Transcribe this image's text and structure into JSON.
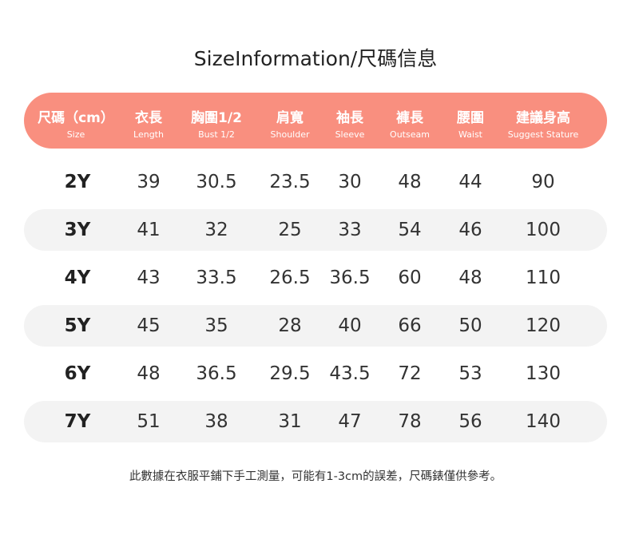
{
  "title": "SizeInformation/尺碼信息",
  "header": [
    {
      "zh": "尺碼（cm）",
      "en": "Size"
    },
    {
      "zh": "衣長",
      "en": "Length"
    },
    {
      "zh": "胸圍1/2",
      "en": "Bust 1/2"
    },
    {
      "zh": "肩寬",
      "en": "Shoulder"
    },
    {
      "zh": "袖長",
      "en": "Sleeve"
    },
    {
      "zh": "褲長",
      "en": "Outseam"
    },
    {
      "zh": "腰圍",
      "en": "Waist"
    },
    {
      "zh": "建議身高",
      "en": "Suggest Stature"
    }
  ],
  "rows": [
    [
      "2Y",
      "39",
      "30.5",
      "23.5",
      "30",
      "48",
      "44",
      "90"
    ],
    [
      "3Y",
      "41",
      "32",
      "25",
      "33",
      "54",
      "46",
      "100"
    ],
    [
      "4Y",
      "43",
      "33.5",
      "26.5",
      "36.5",
      "60",
      "48",
      "110"
    ],
    [
      "5Y",
      "45",
      "35",
      "28",
      "40",
      "66",
      "50",
      "120"
    ],
    [
      "6Y",
      "48",
      "36.5",
      "29.5",
      "43.5",
      "72",
      "53",
      "130"
    ],
    [
      "7Y",
      "51",
      "38",
      "31",
      "47",
      "78",
      "56",
      "140"
    ]
  ],
  "note": "此數據在衣服平鋪下手工測量，可能有1-3cm的誤差，尺碼錶僅供參考。",
  "colors": {
    "header_bg": "#f98f7f",
    "row_shade": "#f3f3f3"
  }
}
